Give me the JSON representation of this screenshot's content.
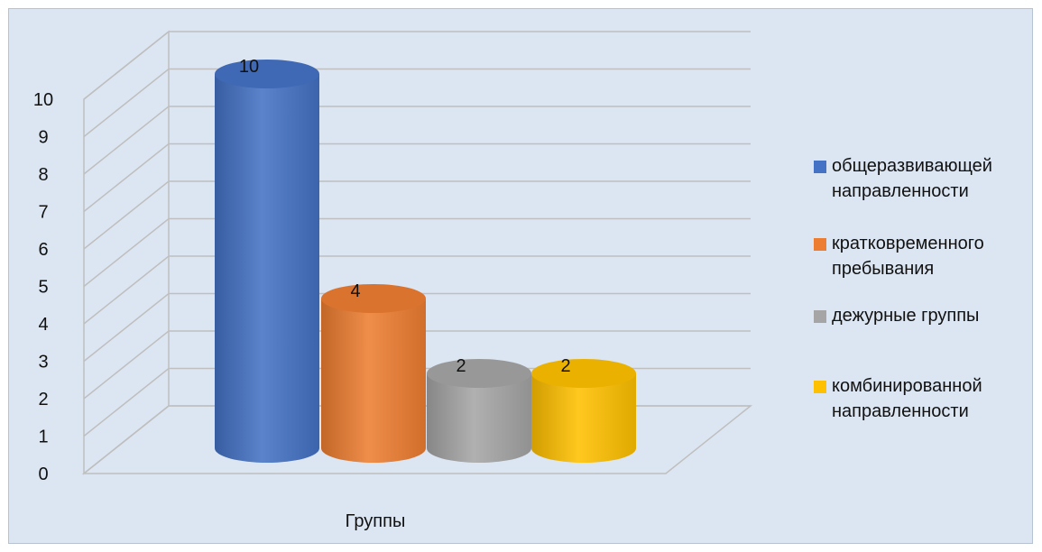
{
  "chart_data": {
    "type": "bar",
    "categories": [
      "Группы"
    ],
    "xlabel": "Группы",
    "ylabel": "",
    "title": "",
    "ylim": [
      0,
      10
    ],
    "yticks": [
      "0",
      "1",
      "2",
      "3",
      "4",
      "5",
      "6",
      "7",
      "8",
      "9",
      "10"
    ],
    "grid": true,
    "legend_position": "right",
    "series": [
      {
        "name": "общеразвивающей направленности",
        "values": [
          10
        ],
        "color": "#4472c4"
      },
      {
        "name": "кратковременного пребывания",
        "values": [
          4
        ],
        "color": "#ed7d31"
      },
      {
        "name": "дежурные группы",
        "values": [
          2
        ],
        "color": "#a5a5a5"
      },
      {
        "name": "комбинированной направленности",
        "values": [
          2
        ],
        "color": "#ffc000"
      }
    ],
    "data_labels": [
      "10",
      "4",
      "2",
      "2"
    ]
  },
  "legend": {
    "items": [
      {
        "label": "общеразвивающей\nнаправленности",
        "color": "#4472c4",
        "icon": "square-swatch"
      },
      {
        "label": "кратковременного\nпребывания",
        "color": "#ed7d31",
        "icon": "square-swatch"
      },
      {
        "label": "дежурные группы",
        "color": "#a5a5a5",
        "icon": "square-swatch"
      },
      {
        "label": "комбинированной\nнаправленности",
        "color": "#ffc000",
        "icon": "square-swatch"
      }
    ]
  }
}
